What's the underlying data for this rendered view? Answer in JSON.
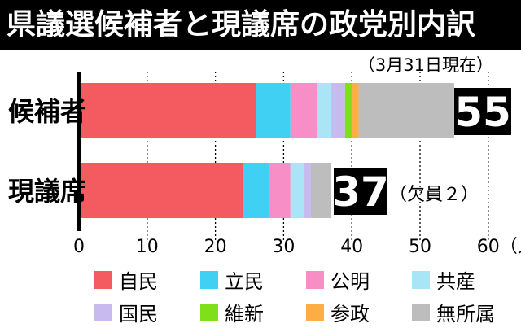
{
  "title": "県議選候補者と現議席の政党別内訳",
  "date_note": "（3月31日現在）",
  "chart_data": {
    "type": "bar",
    "orientation": "horizontal",
    "stacked": true,
    "categories": [
      "候補者",
      "現議席"
    ],
    "series": [
      {
        "name": "自民",
        "color": "#f35b61",
        "values": [
          26,
          24
        ]
      },
      {
        "name": "立民",
        "color": "#3fd0f4",
        "values": [
          5,
          4
        ]
      },
      {
        "name": "公明",
        "color": "#f78ec5",
        "values": [
          4,
          3
        ]
      },
      {
        "name": "共産",
        "color": "#a9e4f7",
        "values": [
          2,
          2
        ]
      },
      {
        "name": "国民",
        "color": "#c8b9ee",
        "values": [
          2,
          1
        ]
      },
      {
        "name": "維新",
        "color": "#7fe019",
        "values": [
          1,
          0
        ]
      },
      {
        "name": "参政",
        "color": "#fcae44",
        "values": [
          1,
          0
        ]
      },
      {
        "name": "無所属",
        "color": "#bdbdbd",
        "values": [
          14,
          3
        ]
      }
    ],
    "totals": [
      "55",
      "37"
    ],
    "total_note": "（欠員２）",
    "x_ticks": [
      "0",
      "10",
      "20",
      "30",
      "40",
      "50",
      "60"
    ],
    "x_unit": "（人）",
    "xlim": [
      0,
      60
    ],
    "grid": "dotted-vertical",
    "legend_position": "bottom"
  }
}
